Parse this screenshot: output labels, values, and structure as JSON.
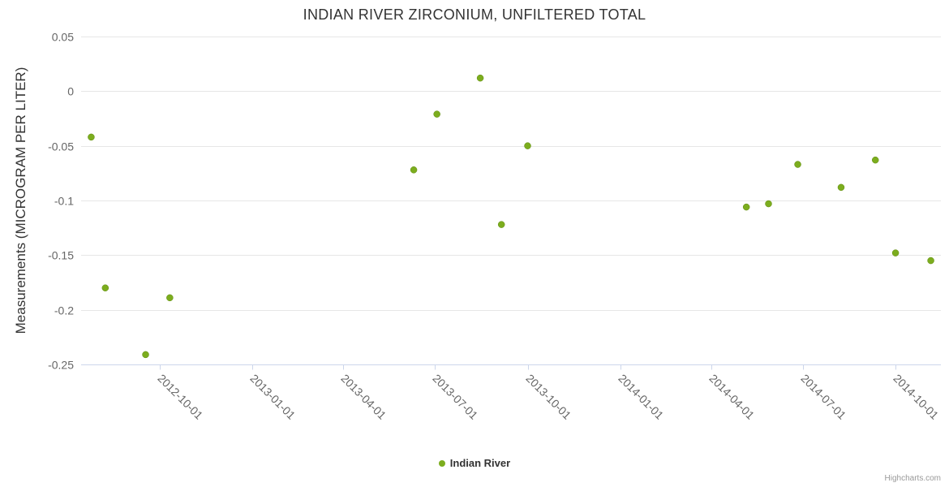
{
  "credits": "Highcharts.com",
  "chart_data": {
    "type": "scatter",
    "title": "INDIAN RIVER ZIRCONIUM, UNFILTERED TOTAL",
    "xlabel": "",
    "ylabel": "Measurements (MICROGRAM PER LITER)",
    "ylim": [
      -0.25,
      0.05
    ],
    "yticks": [
      {
        "value": 0.05,
        "label": "0.05"
      },
      {
        "value": 0,
        "label": "0"
      },
      {
        "value": -0.05,
        "label": "-0.05"
      },
      {
        "value": -0.1,
        "label": "-0.1"
      },
      {
        "value": -0.15,
        "label": "-0.15"
      },
      {
        "value": -0.2,
        "label": "-0.2"
      },
      {
        "value": -0.25,
        "label": "-0.25"
      }
    ],
    "xlim": [
      "2012-07-15",
      "2014-11-15"
    ],
    "xticks": [
      "2012-10-01",
      "2013-01-01",
      "2013-04-01",
      "2013-07-01",
      "2013-10-01",
      "2014-01-01",
      "2014-04-01",
      "2014-07-01",
      "2014-10-01"
    ],
    "grid": "horizontal",
    "legend_position": "bottom-center",
    "colors": {
      "point": "#7cad1e",
      "gridline": "#e6e6e6",
      "axis_line": "#ccd6eb",
      "axis_label": "#666666",
      "title": "#333333"
    },
    "series": [
      {
        "name": "Indian River",
        "color": "#7cad1e",
        "points": [
          {
            "date": "2012-07-25",
            "value": -0.042
          },
          {
            "date": "2012-08-08",
            "value": -0.18
          },
          {
            "date": "2012-09-17",
            "value": -0.241
          },
          {
            "date": "2012-10-11",
            "value": -0.189
          },
          {
            "date": "2013-06-10",
            "value": -0.072
          },
          {
            "date": "2013-07-03",
            "value": -0.021
          },
          {
            "date": "2013-08-15",
            "value": 0.012
          },
          {
            "date": "2013-09-05",
            "value": -0.122
          },
          {
            "date": "2013-10-01",
            "value": -0.05
          },
          {
            "date": "2014-05-06",
            "value": -0.106
          },
          {
            "date": "2014-05-28",
            "value": -0.103
          },
          {
            "date": "2014-06-26",
            "value": -0.067
          },
          {
            "date": "2014-08-08",
            "value": -0.088
          },
          {
            "date": "2014-09-11",
            "value": -0.063
          },
          {
            "date": "2014-10-01",
            "value": -0.148
          },
          {
            "date": "2014-11-05",
            "value": -0.155
          }
        ]
      }
    ]
  }
}
